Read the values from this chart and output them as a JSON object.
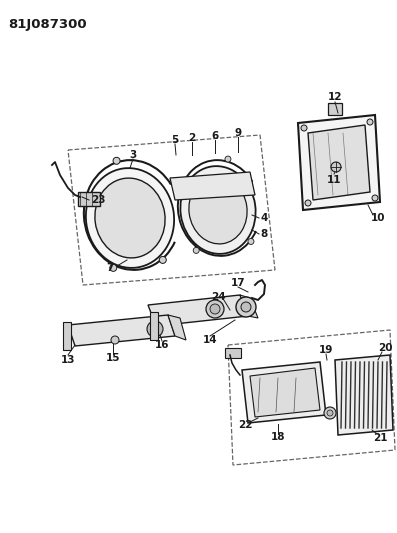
{
  "title_code": "81J087300",
  "bg": "#ffffff",
  "lc": "#1a1a1a",
  "dc": "#666666",
  "fig_width": 3.97,
  "fig_height": 5.33,
  "dpi": 100
}
